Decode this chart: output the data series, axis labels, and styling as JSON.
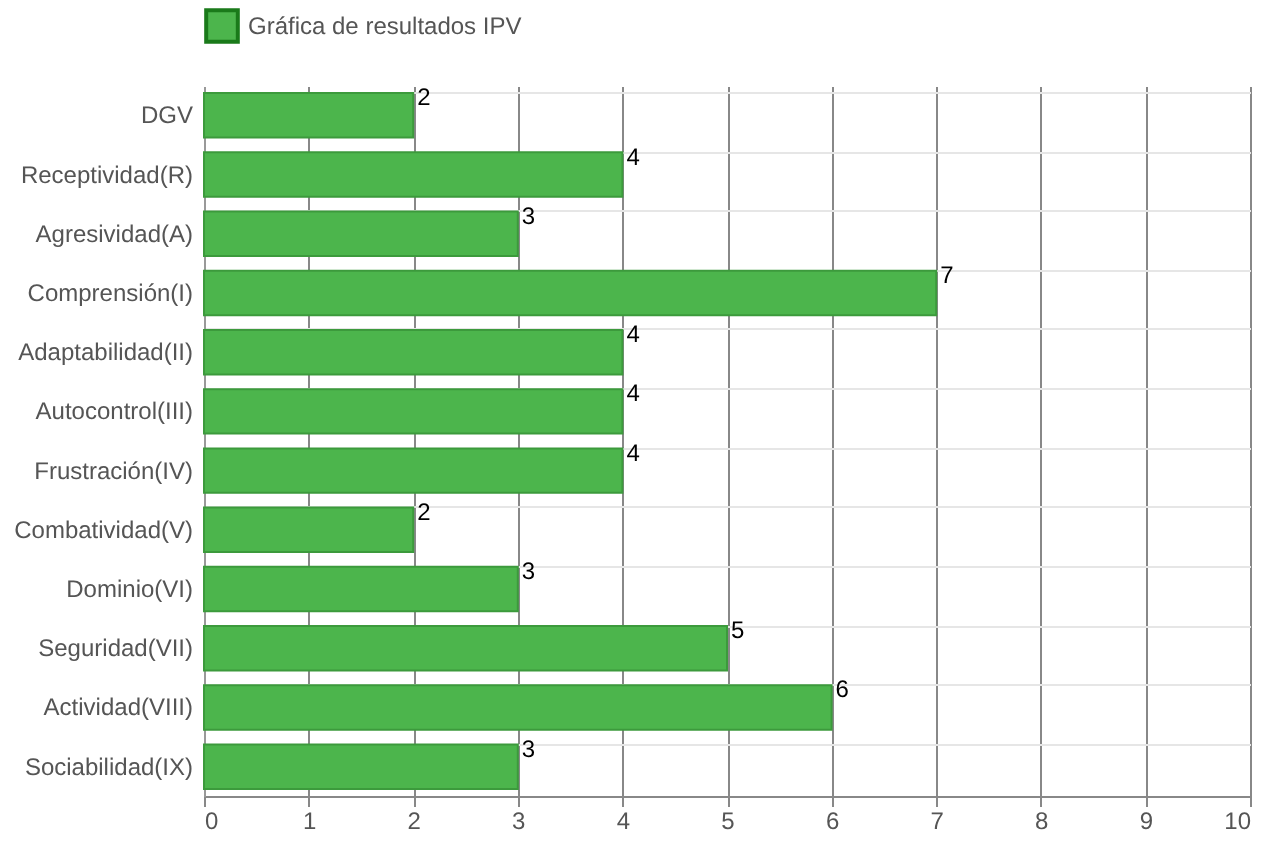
{
  "chart_data": {
    "type": "bar",
    "orientation": "horizontal",
    "categories": [
      "DGV",
      "Receptividad(R)",
      "Agresividad(A)",
      "Comprensión(I)",
      "Adaptabilidad(II)",
      "Autocontrol(III)",
      "Frustración(IV)",
      "Combatividad(V)",
      "Dominio(VI)",
      "Seguridad(VII)",
      "Actividad(VIII)",
      "Sociabilidad(IX)"
    ],
    "series": [
      {
        "name": "Gráfica de resultados IPV",
        "color": "#4cb54c",
        "values": [
          2,
          4,
          3,
          7,
          4,
          4,
          4,
          2,
          3,
          5,
          6,
          3
        ]
      }
    ],
    "xlim": [
      0,
      10
    ],
    "xticks": [
      0,
      1,
      2,
      3,
      4,
      5,
      6,
      7,
      8,
      9,
      10
    ],
    "grid": true,
    "legend": "top",
    "data_labels": true
  }
}
